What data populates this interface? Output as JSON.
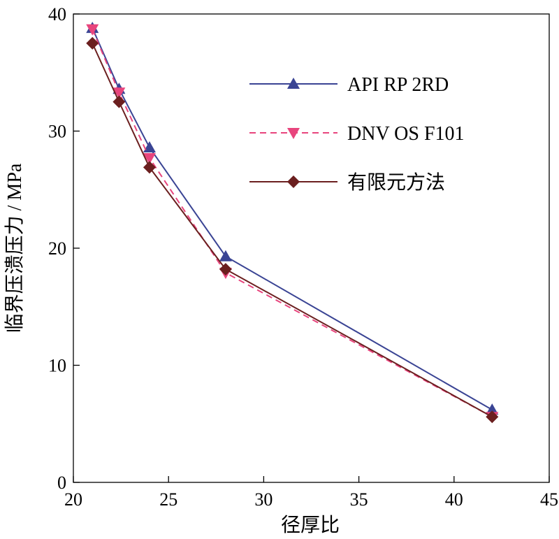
{
  "chart_data": {
    "type": "line",
    "title": "",
    "xlabel": "径厚比",
    "ylabel": "临界压溃压力 / MPa",
    "xlim": [
      20,
      45
    ],
    "ylim": [
      0,
      40
    ],
    "xticks": [
      20,
      25,
      30,
      35,
      40,
      45
    ],
    "yticks": [
      0,
      10,
      20,
      30,
      40
    ],
    "grid": false,
    "legend_position": "top-right",
    "series": [
      {
        "name": "API RP 2RD",
        "color": "#3a4494",
        "marker": "triangle-up",
        "line_style": "solid",
        "x": [
          21,
          22.4,
          24,
          28,
          42
        ],
        "y": [
          38.8,
          33.6,
          28.6,
          19.3,
          6.2
        ]
      },
      {
        "name": "DNV OS F101",
        "color": "#e8457d",
        "marker": "triangle-down",
        "line_style": "dashed",
        "x": [
          21,
          22.4,
          24,
          28,
          42
        ],
        "y": [
          38.7,
          33.3,
          27.7,
          17.9,
          5.6
        ]
      },
      {
        "name": "有限元方法",
        "color": "#6b1f1f",
        "marker": "diamond",
        "line_style": "solid",
        "x": [
          21,
          22.4,
          24,
          28,
          42
        ],
        "y": [
          37.5,
          32.5,
          26.9,
          18.2,
          5.6
        ]
      }
    ]
  }
}
